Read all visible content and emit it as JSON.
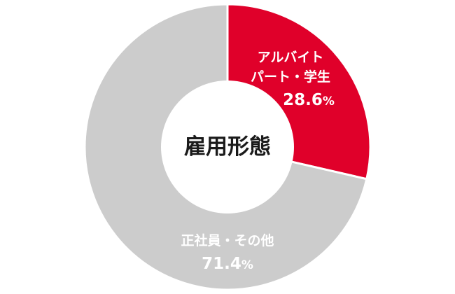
{
  "chart_data": {
    "type": "pie",
    "title": "雇用形態",
    "slices": [
      {
        "label_lines": [
          "アルバイト",
          "パート・学生"
        ],
        "value": 28.6,
        "value_text": "28.6",
        "unit": "%",
        "color": "#e0002a"
      },
      {
        "label_lines": [
          "正社員・その他"
        ],
        "value": 71.4,
        "value_text": "71.4",
        "unit": "%",
        "color": "#cccccc"
      }
    ],
    "start_angle_deg": 0,
    "direction": "clockwise",
    "legend": "none"
  }
}
